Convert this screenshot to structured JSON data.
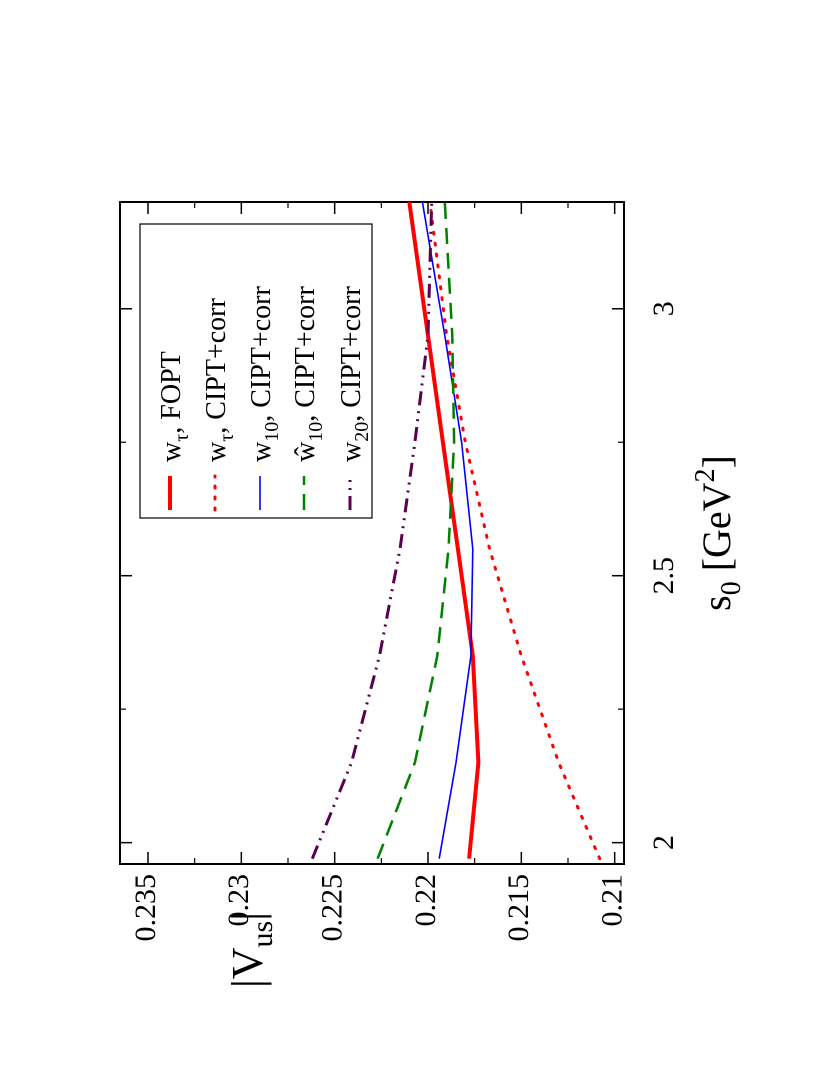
{
  "chart_data": {
    "type": "line",
    "orientation": "rotated-90-ccw",
    "xlabel": "s",
    "xlabel_sub": "0",
    "xlabel_unit": "[GeV",
    "xlabel_unit_sup": "2",
    "xlabel_unit_close": "]",
    "ylabel": "|V",
    "ylabel_sub": "us",
    "ylabel_close": "|",
    "xlim": [
      1.96,
      3.2
    ],
    "ylim": [
      0.2095,
      0.2365
    ],
    "x_ticks": [
      {
        "value": 2,
        "label": "2"
      },
      {
        "value": 2.5,
        "label": "2.5"
      },
      {
        "value": 3,
        "label": "3"
      }
    ],
    "y_ticks": [
      {
        "value": 0.21,
        "label": "0.21"
      },
      {
        "value": 0.215,
        "label": "0.215"
      },
      {
        "value": 0.22,
        "label": "0.22"
      },
      {
        "value": 0.225,
        "label": "0.225"
      },
      {
        "value": 0.23,
        "label": "0.23"
      },
      {
        "value": 0.235,
        "label": "0.235"
      }
    ],
    "legend_position": "top-right",
    "series": [
      {
        "name": "w_tau, FOPT",
        "legend": {
          "w": "w",
          "sub": "τ",
          "rest": ", FOPT"
        },
        "color": "#ff0000",
        "style": "solid",
        "width": 4,
        "x": [
          1.97,
          2.15,
          2.35,
          2.55,
          2.75,
          2.95,
          3.2
        ],
        "y": [
          0.2178,
          0.2173,
          0.2176,
          0.2184,
          0.2192,
          0.22,
          0.221
        ]
      },
      {
        "name": "w_tau, CIPT+corr",
        "legend": {
          "w": "w",
          "sub": "τ",
          "rest": ", CIPT+corr"
        },
        "color": "#ff0000",
        "style": "dotted",
        "width": 3,
        "x": [
          1.97,
          2.15,
          2.35,
          2.55,
          2.75,
          2.95,
          3.2
        ],
        "y": [
          0.2108,
          0.213,
          0.215,
          0.2167,
          0.218,
          0.219,
          0.2199
        ]
      },
      {
        "name": "w_10, CIPT+corr",
        "legend": {
          "w": "w",
          "sub": "10",
          "rest": ", CIPT+corr"
        },
        "color": "#0000ff",
        "style": "solid",
        "width": 1.6,
        "x": [
          1.97,
          2.15,
          2.35,
          2.55,
          2.75,
          2.95,
          3.2
        ],
        "y": [
          0.2194,
          0.2185,
          0.2177,
          0.2176,
          0.2182,
          0.2191,
          0.2203
        ]
      },
      {
        "name": "ŵ_10, CIPT+corr",
        "legend": {
          "w": "ŵ",
          "sub": "10",
          "rest": ", CIPT+corr"
        },
        "color": "#008000",
        "style": "dashed",
        "width": 2.5,
        "x": [
          1.97,
          2.15,
          2.35,
          2.55,
          2.75,
          2.95,
          3.2
        ],
        "y": [
          0.2227,
          0.2207,
          0.2195,
          0.2189,
          0.2186,
          0.2187,
          0.2191
        ]
      },
      {
        "name": "w_20, CIPT+corr",
        "legend": {
          "w": "w",
          "sub": "20",
          "rest": ", CIPT+corr"
        },
        "color": "#5a0050",
        "style": "dashdotdot",
        "width": 3,
        "x": [
          1.97,
          2.15,
          2.35,
          2.55,
          2.75,
          2.95,
          3.2
        ],
        "y": [
          0.2262,
          0.2241,
          0.2226,
          0.2215,
          0.2207,
          0.22,
          0.2198
        ]
      }
    ]
  }
}
